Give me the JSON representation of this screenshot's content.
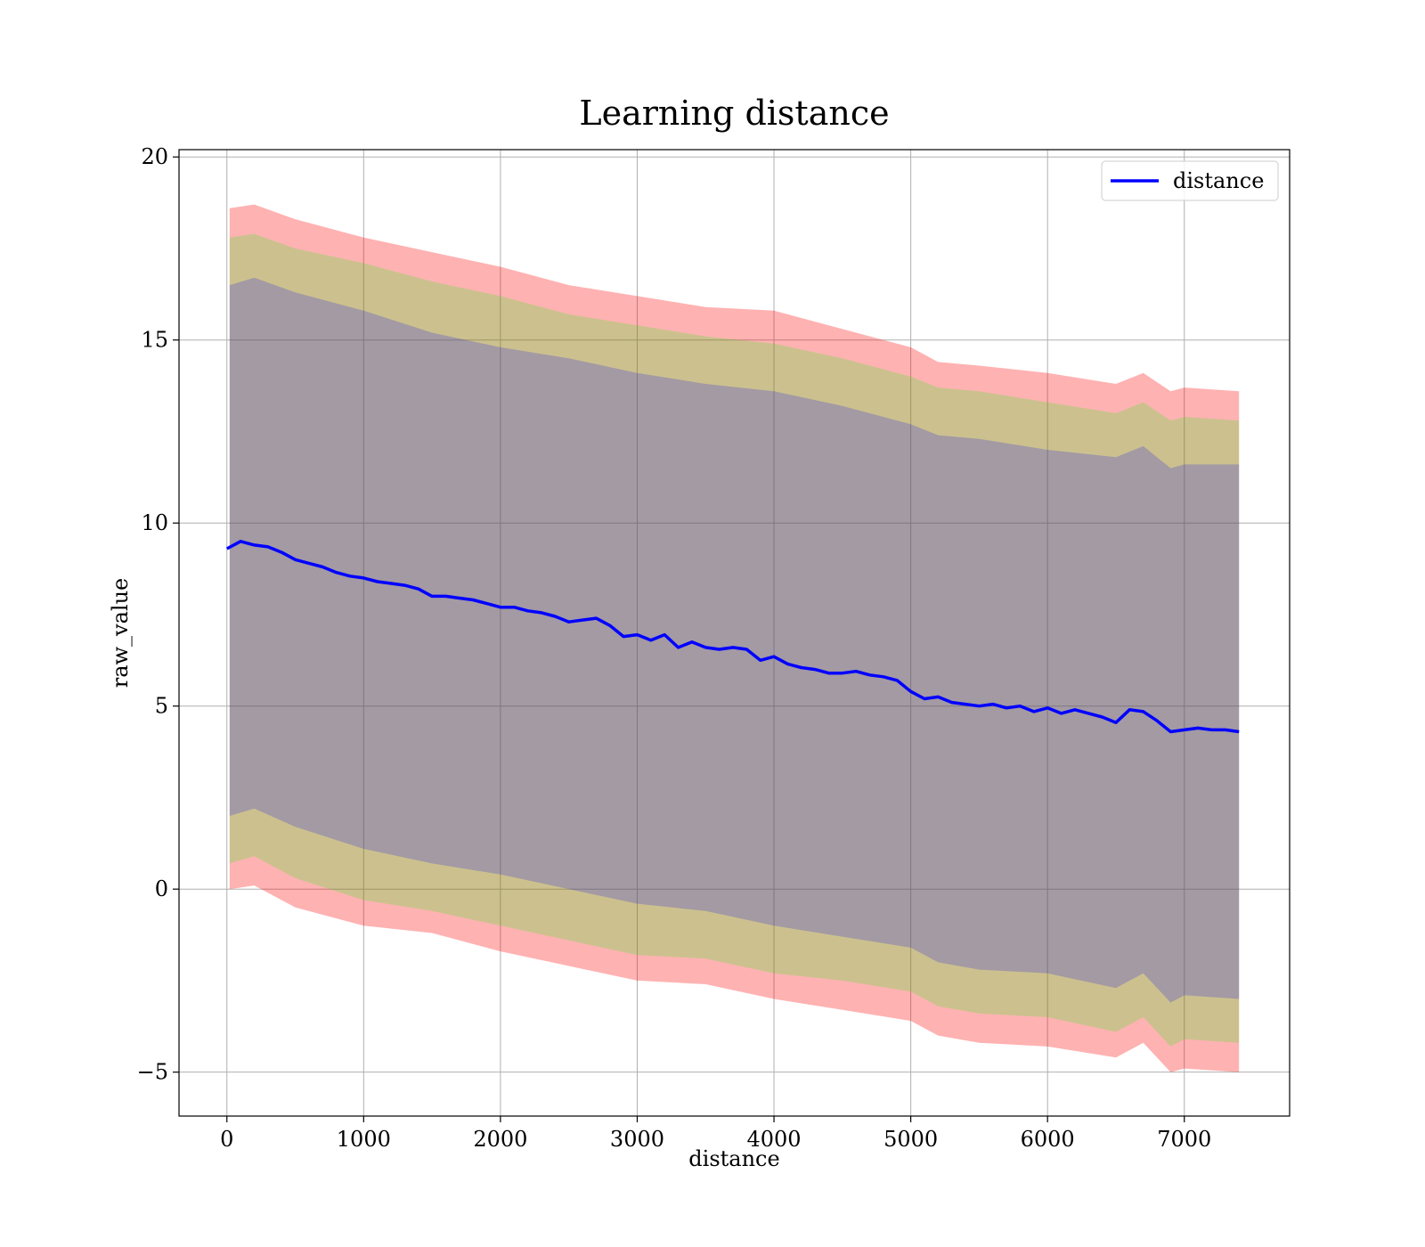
{
  "chart_data": {
    "type": "line",
    "title": "Learning distance",
    "xlabel": "distance",
    "ylabel": "raw_value",
    "xlim": [
      -350,
      7770
    ],
    "ylim": [
      -6.2,
      20.2
    ],
    "x_ticks": [
      0,
      1000,
      2000,
      3000,
      4000,
      5000,
      6000,
      7000
    ],
    "y_ticks": [
      -5,
      0,
      5,
      10,
      15,
      20
    ],
    "x_tick_labels": [
      "0",
      "1000",
      "2000",
      "3000",
      "4000",
      "5000",
      "6000",
      "7000"
    ],
    "y_tick_labels": [
      "−5",
      "0",
      "5",
      "10",
      "15",
      "20"
    ],
    "grid": true,
    "legend": {
      "position": "top-right",
      "entries": [
        {
          "label": "distance",
          "color": "#0000ff"
        }
      ]
    },
    "series": [
      {
        "name": "distance",
        "color": "#0000ff",
        "x": [
          0,
          100,
          200,
          300,
          400,
          500,
          600,
          700,
          800,
          900,
          1000,
          1100,
          1200,
          1300,
          1400,
          1500,
          1600,
          1700,
          1800,
          1900,
          2000,
          2100,
          2200,
          2300,
          2400,
          2500,
          2600,
          2700,
          2800,
          2900,
          3000,
          3100,
          3200,
          3300,
          3400,
          3500,
          3600,
          3700,
          3800,
          3900,
          4000,
          4100,
          4200,
          4300,
          4400,
          4500,
          4600,
          4700,
          4800,
          4900,
          5000,
          5100,
          5200,
          5300,
          5400,
          5500,
          5600,
          5700,
          5800,
          5900,
          6000,
          6100,
          6200,
          6300,
          6400,
          6500,
          6600,
          6700,
          6800,
          6900,
          7000,
          7100,
          7200,
          7300,
          7400
        ],
        "values": [
          9.3,
          9.5,
          9.4,
          9.35,
          9.2,
          9.0,
          8.9,
          8.8,
          8.65,
          8.55,
          8.5,
          8.4,
          8.35,
          8.3,
          8.2,
          8.0,
          8.0,
          7.95,
          7.9,
          7.8,
          7.7,
          7.7,
          7.6,
          7.55,
          7.45,
          7.3,
          7.35,
          7.4,
          7.2,
          6.9,
          6.95,
          6.8,
          6.95,
          6.6,
          6.75,
          6.6,
          6.55,
          6.6,
          6.55,
          6.25,
          6.35,
          6.15,
          6.05,
          6.0,
          5.9,
          5.9,
          5.95,
          5.85,
          5.8,
          5.7,
          5.4,
          5.2,
          5.25,
          5.1,
          5.05,
          5.0,
          5.05,
          4.95,
          5.0,
          4.85,
          4.95,
          4.8,
          4.9,
          4.8,
          4.7,
          4.55,
          4.9,
          4.85,
          4.6,
          4.3,
          4.35,
          4.4,
          4.35,
          4.35,
          4.3
        ]
      }
    ],
    "bands": [
      {
        "color": "#ff0000",
        "opacity": 0.3,
        "x": [
          20,
          200,
          500,
          1000,
          1500,
          2000,
          2500,
          3000,
          3500,
          4000,
          4500,
          5000,
          5200,
          5500,
          6000,
          6500,
          6700,
          6900,
          7000,
          7400
        ],
        "upper": [
          18.6,
          18.7,
          18.3,
          17.8,
          17.4,
          17.0,
          16.5,
          16.2,
          15.9,
          15.8,
          15.3,
          14.8,
          14.4,
          14.3,
          14.1,
          13.8,
          14.1,
          13.6,
          13.7,
          13.6
        ],
        "lower": [
          0.0,
          0.1,
          -0.5,
          -1.0,
          -1.2,
          -1.7,
          -2.1,
          -2.5,
          -2.6,
          -3.0,
          -3.3,
          -3.6,
          -4.0,
          -4.2,
          -4.3,
          -4.6,
          -4.2,
          -5.0,
          -4.9,
          -5.0
        ]
      },
      {
        "color": "#00ff00",
        "opacity": 0.2,
        "x": [
          20,
          200,
          500,
          1000,
          1500,
          2000,
          2500,
          3000,
          3500,
          4000,
          4500,
          5000,
          5200,
          5500,
          6000,
          6500,
          6700,
          6900,
          7000,
          7400
        ],
        "upper": [
          17.8,
          17.9,
          17.5,
          17.1,
          16.6,
          16.2,
          15.7,
          15.4,
          15.1,
          14.9,
          14.5,
          14.0,
          13.7,
          13.6,
          13.3,
          13.0,
          13.3,
          12.8,
          12.9,
          12.8
        ],
        "lower": [
          0.7,
          0.9,
          0.3,
          -0.3,
          -0.6,
          -1.0,
          -1.4,
          -1.8,
          -1.9,
          -2.3,
          -2.5,
          -2.8,
          -3.2,
          -3.4,
          -3.5,
          -3.9,
          -3.5,
          -4.3,
          -4.1,
          -4.2
        ]
      },
      {
        "color": "#0000ff",
        "opacity": 0.2,
        "x": [
          20,
          200,
          500,
          1000,
          1500,
          2000,
          2500,
          3000,
          3500,
          4000,
          4500,
          5000,
          5200,
          5500,
          6000,
          6500,
          6700,
          6900,
          7000,
          7400
        ],
        "upper": [
          16.5,
          16.7,
          16.3,
          15.8,
          15.2,
          14.8,
          14.5,
          14.1,
          13.8,
          13.6,
          13.2,
          12.7,
          12.4,
          12.3,
          12.0,
          11.8,
          12.1,
          11.5,
          11.6,
          11.6
        ],
        "lower": [
          2.0,
          2.2,
          1.7,
          1.1,
          0.7,
          0.4,
          0.0,
          -0.4,
          -0.6,
          -1.0,
          -1.3,
          -1.6,
          -2.0,
          -2.2,
          -2.3,
          -2.7,
          -2.3,
          -3.1,
          -2.9,
          -3.0
        ]
      }
    ]
  }
}
